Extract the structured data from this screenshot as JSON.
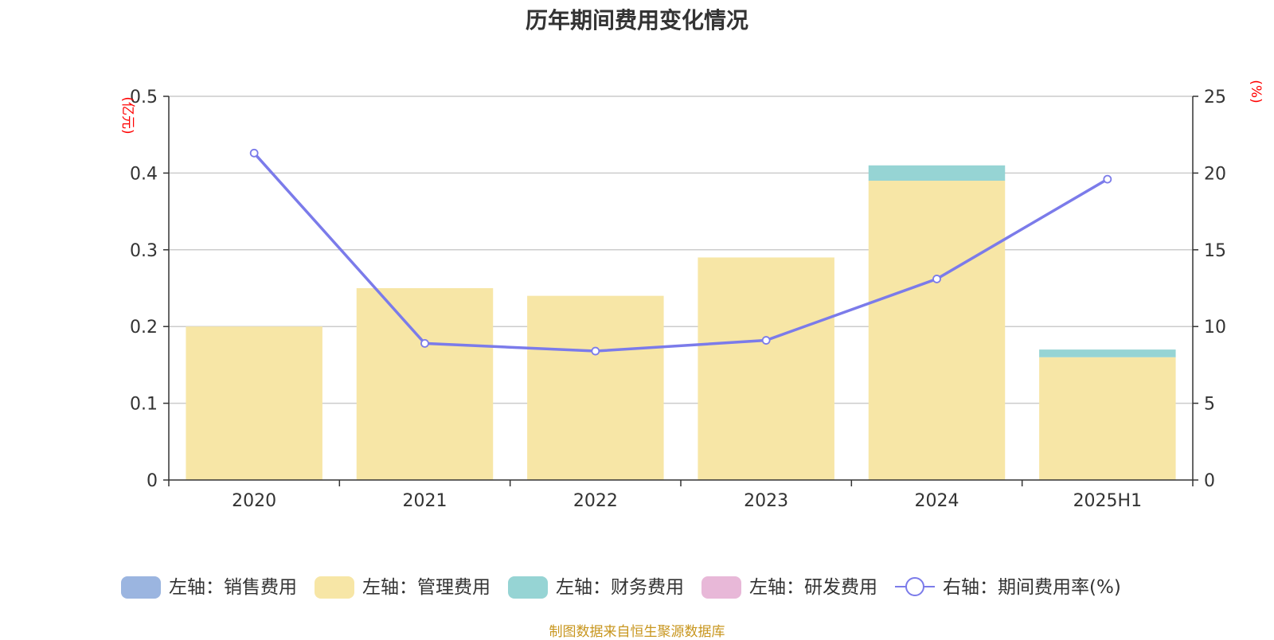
{
  "title": "历年期间费用变化情况",
  "source": "制图数据来自恒生聚源数据库",
  "chart_data": {
    "type": "bar",
    "stacked": true,
    "categories": [
      "2020",
      "2021",
      "2022",
      "2023",
      "2024",
      "2025H1"
    ],
    "left_axis": {
      "unit": "(亿元)",
      "min": 0,
      "max": 0.5,
      "ticks": [
        "0",
        "0.1",
        "0.2",
        "0.3",
        "0.4",
        "0.5"
      ]
    },
    "right_axis": {
      "unit": "(%)",
      "min": 0,
      "max": 25,
      "ticks": [
        "0",
        "5",
        "10",
        "15",
        "20",
        "25"
      ]
    },
    "grid": true,
    "legend_position": "bottom",
    "series": [
      {
        "name": "左轴：销售费用",
        "type": "bar",
        "color": "#9bb5e0",
        "values": [
          0,
          0,
          0,
          0,
          0,
          0
        ]
      },
      {
        "name": "左轴：管理费用",
        "type": "bar",
        "color": "#f7e6a6",
        "values": [
          0.2,
          0.25,
          0.24,
          0.29,
          0.39,
          0.16
        ]
      },
      {
        "name": "左轴：财务费用",
        "type": "bar",
        "color": "#96d4d4",
        "values": [
          0,
          0,
          0,
          0,
          0.02,
          0.01
        ]
      },
      {
        "name": "左轴：研发费用",
        "type": "bar",
        "color": "#e8b8d8",
        "values": [
          0,
          0,
          0,
          0,
          0,
          0
        ]
      },
      {
        "name": "右轴：期间费用率(%)",
        "type": "line",
        "axis": "right",
        "color": "#7b7bea",
        "values": [
          21.3,
          8.9,
          8.4,
          9.1,
          13.1,
          19.6
        ]
      }
    ]
  }
}
